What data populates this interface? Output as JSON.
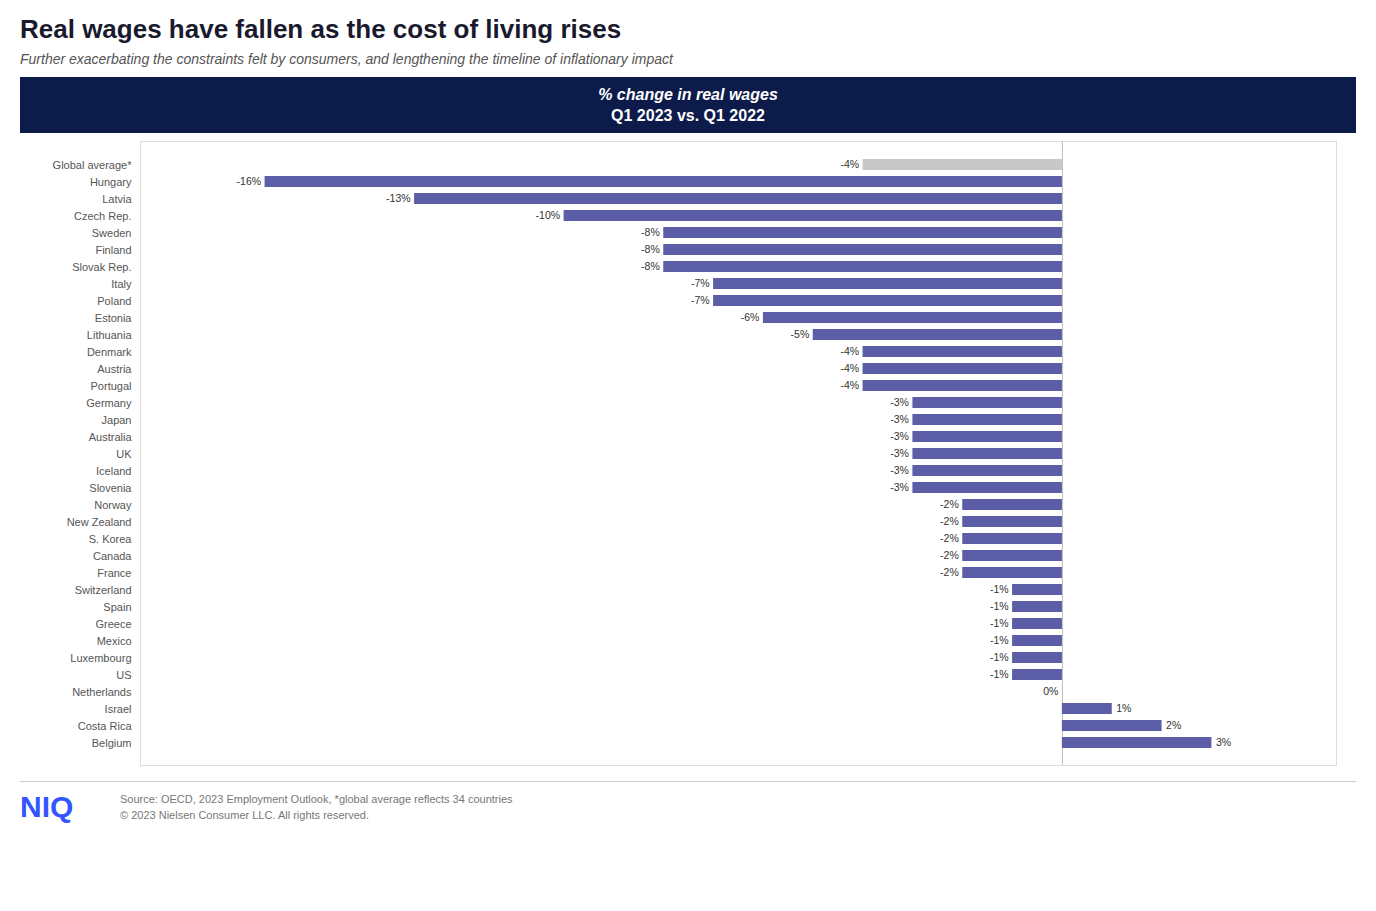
{
  "chart_data": {
    "type": "bar",
    "orientation": "horizontal",
    "title": "Real wages have fallen as the cost of living rises",
    "subtitle": "Further exacerbating the constraints felt by consumers, and lengthening the timeline of inflationary impact",
    "header": [
      "% change in real wages",
      "Q1 2023 vs. Q1 2022"
    ],
    "source": [
      "Source: OECD, 2023 Employment Outlook, *global average reflects 34 countries",
      "© 2023 Nielsen Consumer LLC. All rights reserved."
    ],
    "logo": "NIQ",
    "categories": [
      "Global average*",
      "Hungary",
      "Latvia",
      "Czech Rep.",
      "Sweden",
      "Finland",
      "Slovak Rep.",
      "Italy",
      "Poland",
      "Estonia",
      "Lithuania",
      "Denmark",
      "Austria",
      "Portugal",
      "Germany",
      "Japan",
      "Australia",
      "UK",
      "Iceland",
      "Slovenia",
      "Norway",
      "New Zealand",
      "S. Korea",
      "Canada",
      "France",
      "Switzerland",
      "Spain",
      "Greece",
      "Mexico",
      "Luxembourg",
      "US",
      "Netherlands",
      "Israel",
      "Costa Rica",
      "Belgium"
    ],
    "values": [
      -4,
      -16,
      -13,
      -10,
      -8,
      -8,
      -8,
      -7,
      -7,
      -6,
      -5,
      -4,
      -4,
      -4,
      -3,
      -3,
      -3,
      -3,
      -3,
      -3,
      -2,
      -2,
      -2,
      -2,
      -2,
      -1,
      -1,
      -1,
      -1,
      -1,
      -1,
      0,
      1,
      2,
      3
    ],
    "value_labels": [
      "-4%",
      "-16%",
      "-13%",
      "-10%",
      "-8%",
      "-8%",
      "-8%",
      "-7%",
      "-7%",
      "-6%",
      "-5%",
      "-4%",
      "-4%",
      "-4%",
      "-3%",
      "-3%",
      "-3%",
      "-3%",
      "-3%",
      "-3%",
      "-2%",
      "-2%",
      "-2%",
      "-2%",
      "-2%",
      "-1%",
      "-1%",
      "-1%",
      "-1%",
      "-1%",
      "-1%",
      "0%",
      "1%",
      "2%",
      "3%"
    ],
    "data_labels": true,
    "colors": [
      "#c8c8c8",
      "#5b5ea6",
      "#5b5ea6",
      "#5b5ea6",
      "#5b5ea6",
      "#5b5ea6",
      "#5b5ea6",
      "#5b5ea6",
      "#5b5ea6",
      "#5b5ea6",
      "#5b5ea6",
      "#5b5ea6",
      "#5b5ea6",
      "#5b5ea6",
      "#5b5ea6",
      "#5b5ea6",
      "#5b5ea6",
      "#5b5ea6",
      "#5b5ea6",
      "#5b5ea6",
      "#5b5ea6",
      "#5b5ea6",
      "#5b5ea6",
      "#5b5ea6",
      "#5b5ea6",
      "#5b5ea6",
      "#5b5ea6",
      "#5b5ea6",
      "#5b5ea6",
      "#5b5ea6",
      "#5b5ea6",
      "#5b5ea6",
      "#5b5ea6",
      "#5b5ea6",
      "#5b5ea6"
    ],
    "xlim": [
      -18.5,
      5.5
    ],
    "xticks": [
      0
    ],
    "tick_labels": "y",
    "grid": false
  }
}
